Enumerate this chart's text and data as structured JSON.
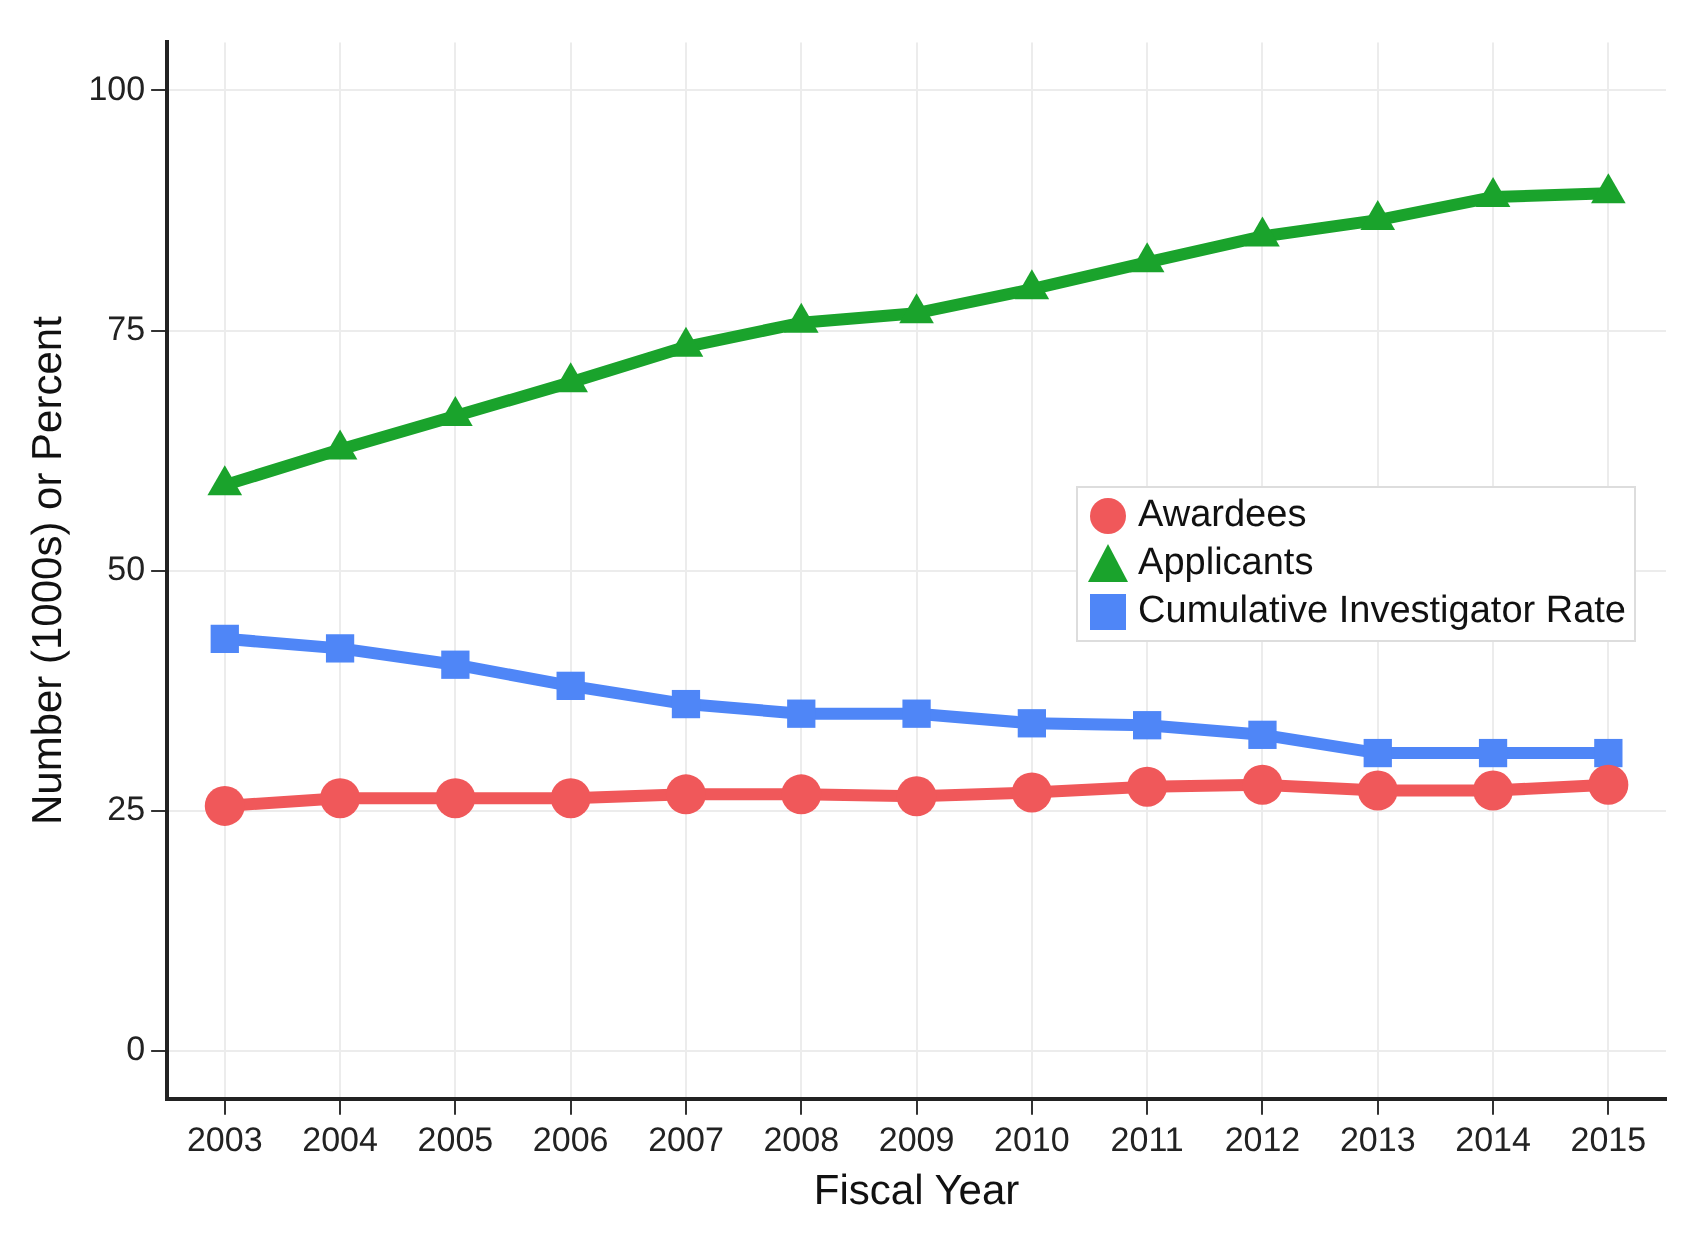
{
  "chart_data": {
    "type": "line",
    "xlabel": "Fiscal Year",
    "ylabel": "Number (1000s) or Percent",
    "categories": [
      "2003",
      "2004",
      "2005",
      "2006",
      "2007",
      "2008",
      "2009",
      "2010",
      "2011",
      "2012",
      "2013",
      "2014",
      "2015"
    ],
    "series": [
      {
        "name": "Awardees",
        "color": "#f0585a",
        "marker": "circle",
        "values": [
          25.5,
          26.3,
          26.3,
          26.3,
          26.7,
          26.7,
          26.5,
          26.9,
          27.5,
          27.7,
          27.1,
          27.1,
          27.7
        ]
      },
      {
        "name": "Applicants",
        "color": "#1aa32c",
        "marker": "triangle",
        "values": [
          58.9,
          62.6,
          66.1,
          69.6,
          73.3,
          75.8,
          76.8,
          79.3,
          82.1,
          84.8,
          86.5,
          88.9,
          89.3
        ]
      },
      {
        "name": "Cumulative Investigator Rate",
        "color": "#4f86f7",
        "marker": "square",
        "values": [
          42.9,
          41.9,
          40.2,
          38,
          36.1,
          35.1,
          35.1,
          34.1,
          33.9,
          32.9,
          31,
          31,
          31
        ]
      }
    ],
    "ylim": [
      -5,
      105
    ],
    "yticks": [
      0,
      25,
      50,
      75,
      100
    ],
    "grid": true,
    "legend": "right"
  }
}
